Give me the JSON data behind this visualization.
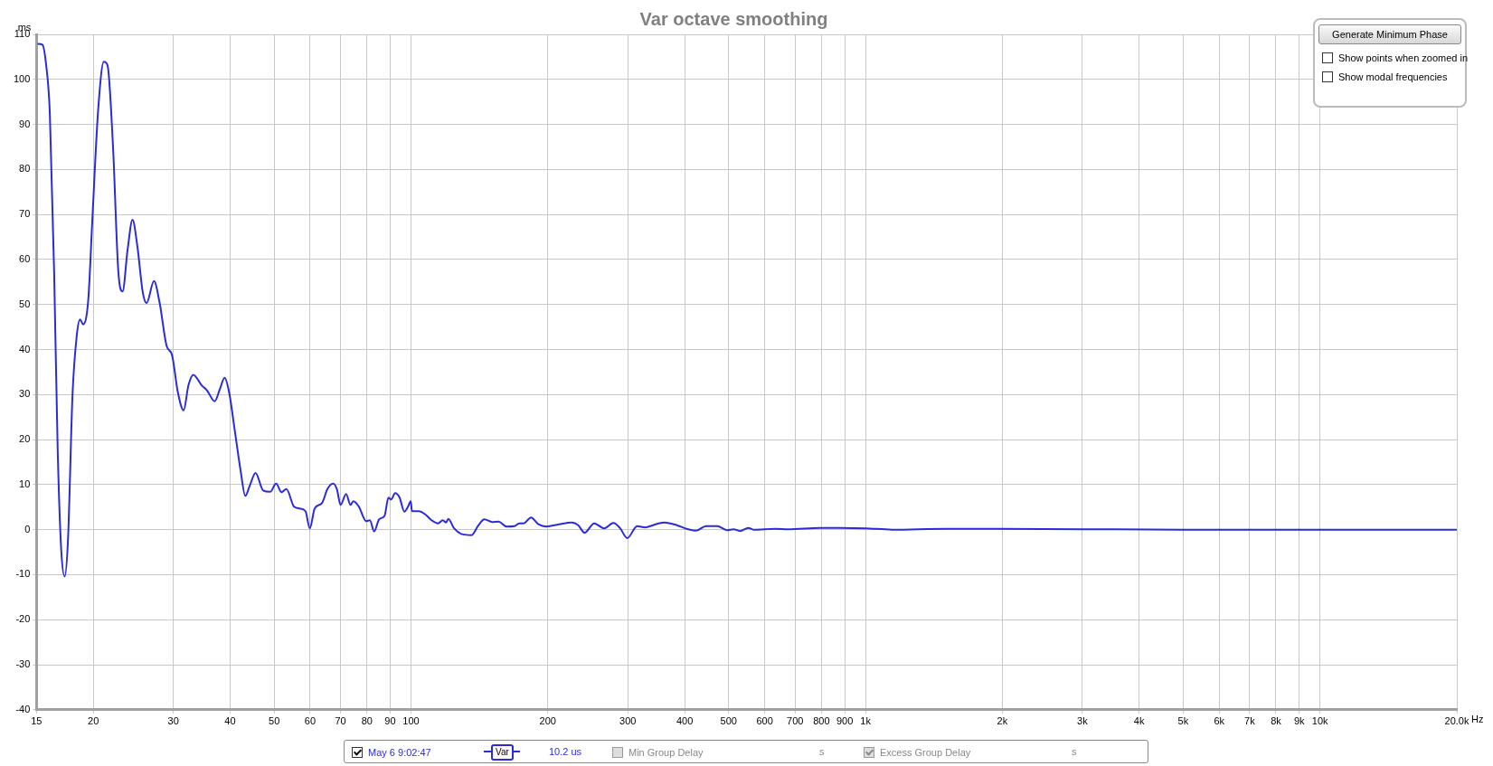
{
  "chart_data": {
    "type": "line",
    "title": "Var octave smoothing",
    "ylabel": "ms",
    "xlabel": "Hz",
    "log": "x",
    "grid": true,
    "legend": "bottom",
    "marker": "none",
    "line_style": "solid",
    "xlim": [
      15,
      20000
    ],
    "xticks": [
      15,
      20,
      30,
      40,
      50,
      60,
      70,
      80,
      90,
      100,
      200,
      300,
      400,
      500,
      600,
      700,
      800,
      900,
      {
        "value": 1000,
        "label": "1k"
      },
      {
        "value": 2000,
        "label": "2k"
      },
      {
        "value": 3000,
        "label": "3k"
      },
      {
        "value": 4000,
        "label": "4k"
      },
      {
        "value": 5000,
        "label": "5k"
      },
      {
        "value": 6000,
        "label": "6k"
      },
      {
        "value": 7000,
        "label": "7k"
      },
      {
        "value": 8000,
        "label": "8k"
      },
      {
        "value": 9000,
        "label": "9k"
      },
      {
        "value": 10000,
        "label": "10k"
      },
      {
        "value": 20000,
        "label": "20.0k"
      }
    ],
    "ylim": [
      -40,
      110
    ],
    "yticks": [
      -40,
      -30,
      -20,
      -10,
      0,
      10,
      20,
      30,
      40,
      50,
      60,
      70,
      80,
      90,
      100,
      110
    ],
    "annotations": [
      "Generate Minimum Phase",
      "Show points when zoomed in",
      "Show modal frequencies",
      "Var",
      "10.2 us",
      "Min Group Delay",
      "s",
      "Excess Group Delay",
      "s"
    ],
    "series": [
      {
        "name": "May 6 9:02:47",
        "color": "#2b2bdc",
        "x": [
          15.08,
          15.45,
          15.74,
          16.05,
          16.4,
          16.7,
          17.0,
          17.3,
          17.6,
          18.0,
          18.4,
          18.7,
          19.0,
          19.5,
          19.9,
          20.5,
          21.1,
          21.5,
          22.1,
          22.7,
          23.2,
          23.8,
          24.4,
          25.0,
          25.7,
          26.2,
          27.2,
          28.0,
          29.0,
          29.8,
          30.7,
          31.6,
          32.4,
          33.2,
          34.6,
          35.6,
          37.0,
          38.0,
          38.9,
          39.8,
          41.0,
          42.2,
          43.2,
          44.2,
          45.5,
          47.3,
          49.0,
          50.5,
          51.9,
          53.2,
          55.3,
          56.9,
          58.6,
          59.9,
          61.4,
          63.7,
          65.5,
          67.4,
          68.7,
          70.0,
          72.0,
          73.6,
          74.7,
          76.8,
          79.7,
          81.2,
          83.0,
          85.1,
          87.5,
          89.2,
          90.4,
          92.3,
          94.4,
          96.7,
          98.5,
          99.9,
          100.5,
          104,
          107.5,
          111,
          114.7,
          117.5,
          119.5,
          120.8,
          124.4,
          129.5,
          136,
          140.4,
          145,
          150.9,
          155.8,
          162.3,
          169,
          173,
          177,
          183.7,
          190.7,
          198.5,
          211.8,
          225.9,
          233.3,
          241,
          253,
          265.9,
          279,
          288.6,
          299.1,
          314.6,
          327.7,
          340.8,
          360.7,
          384.6,
          400.6,
          424.4,
          445.8,
          471.8,
          495.6,
          512.4,
          529.7,
          552.5,
          567,
          634,
          675,
          795,
          879,
          1000,
          1144,
          1500,
          2000,
          3000,
          5000,
          10000,
          20000
        ],
        "values": [
          107.9,
          107.7,
          103.5,
          92.4,
          57.5,
          17.8,
          -4.4,
          -10.4,
          -2,
          29.8,
          43.2,
          46.7,
          45.6,
          51.1,
          68.6,
          93.2,
          103.9,
          103.1,
          85.2,
          57.5,
          52.9,
          62.2,
          68.8,
          63,
          52.7,
          50.3,
          55.2,
          50.3,
          40.8,
          38.8,
          30.5,
          26.5,
          32.1,
          34.4,
          32.1,
          30.9,
          28.5,
          31.3,
          33.7,
          30.5,
          21.7,
          13,
          7.5,
          9.8,
          12.6,
          8.7,
          8.4,
          10.2,
          8.3,
          9,
          5.1,
          4.7,
          4.1,
          0.3,
          4.7,
          5.9,
          9,
          10.2,
          9,
          5.5,
          7.9,
          5.5,
          6.3,
          5.1,
          1.9,
          2.1,
          -0.4,
          2.3,
          3.1,
          7.1,
          6.7,
          8.1,
          7.1,
          4,
          5.1,
          6.3,
          4.1,
          4.1,
          3.4,
          2.1,
          1.4,
          2.1,
          1.6,
          2.4,
          0.3,
          -1.0,
          -1.2,
          0.8,
          2.3,
          1.7,
          1.8,
          0.7,
          0.8,
          1.4,
          1.4,
          2.7,
          1.2,
          0.7,
          1.2,
          1.6,
          1.0,
          -0.7,
          1.4,
          0.3,
          1.5,
          0.3,
          -1.9,
          0.8,
          0.5,
          1.0,
          1.6,
          1.0,
          0.3,
          -0.2,
          0.8,
          0.8,
          -0.1,
          0.1,
          -0.3,
          0.4,
          0,
          0.2,
          0.1,
          0.4,
          0.4,
          0.3,
          0,
          0.2,
          0.2,
          0.1,
          0,
          0,
          0
        ]
      }
    ]
  }
}
